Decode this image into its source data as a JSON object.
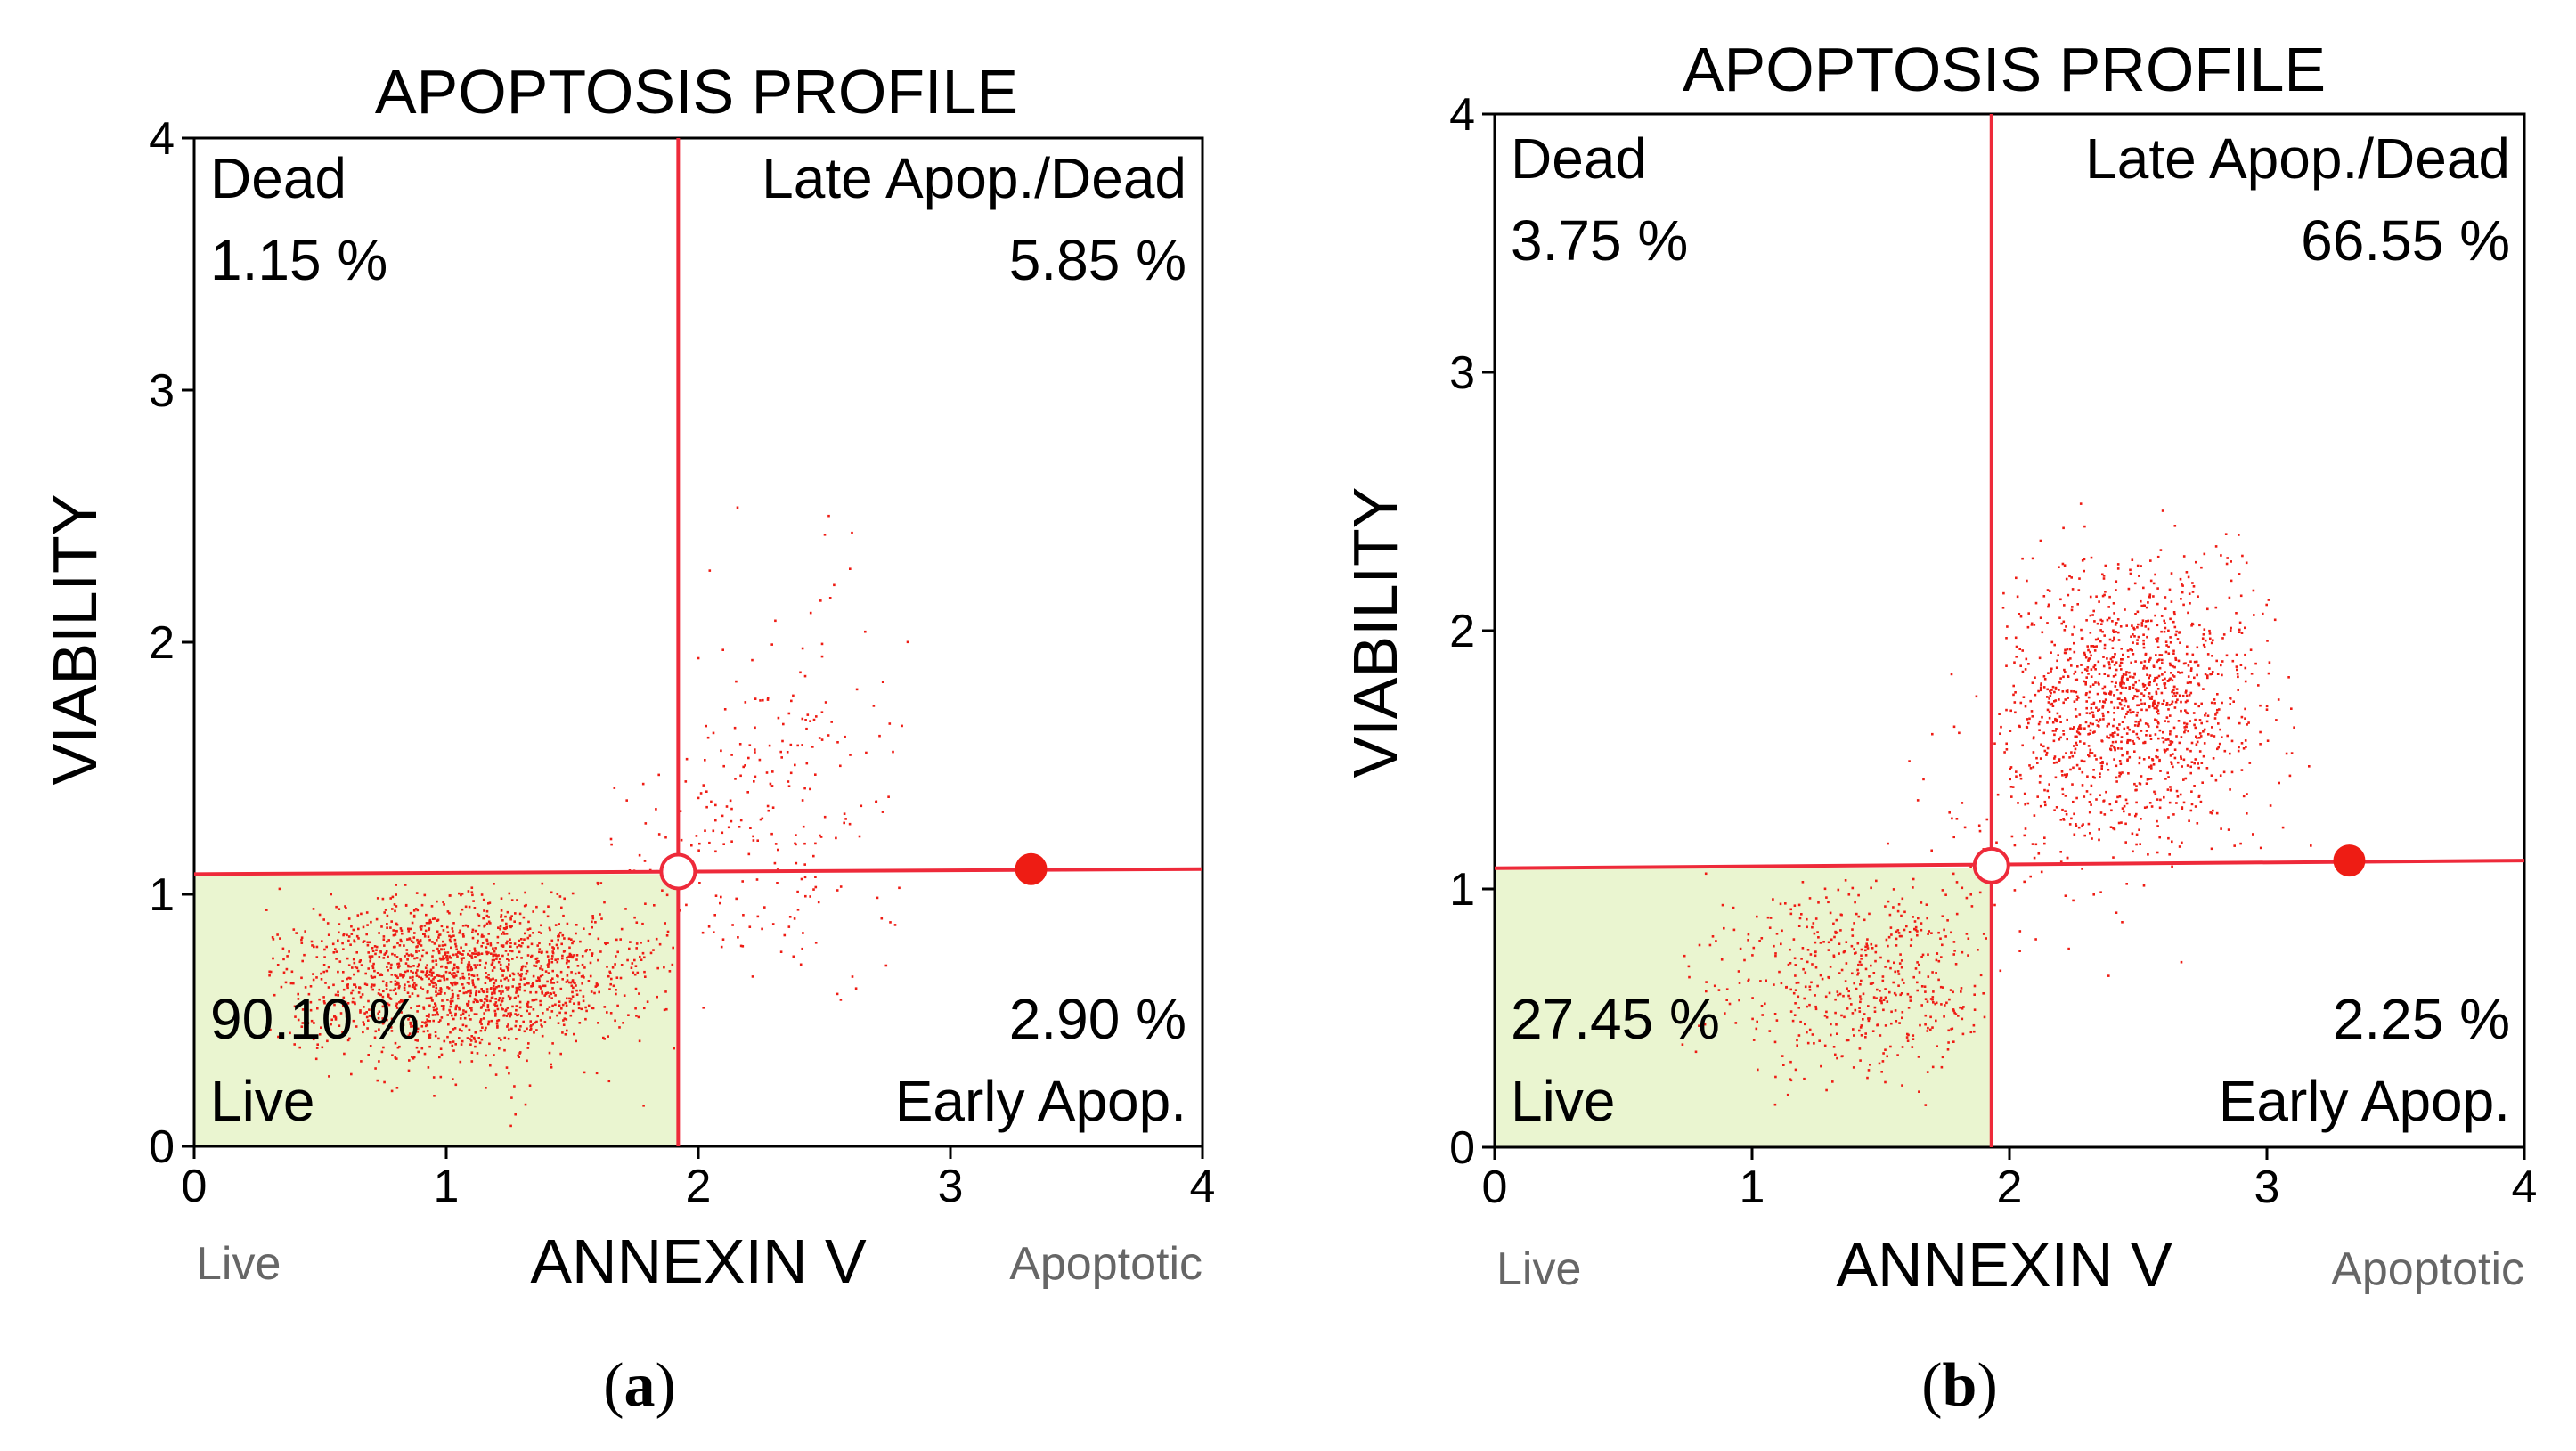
{
  "chart_data": [
    {
      "type": "scatter",
      "panel_label": "a",
      "title": "APOPTOSIS PROFILE",
      "xlabel": "ANNEXIN V",
      "ylabel": "VIABILITY",
      "xlim": [
        0,
        4
      ],
      "ylim": [
        0,
        4
      ],
      "xticks": [
        "0",
        "1",
        "2",
        "3",
        "4"
      ],
      "yticks": [
        "0",
        "1",
        "2",
        "3",
        "4"
      ],
      "x_left_caption": "Live",
      "x_right_caption": "Apoptotic",
      "gate": {
        "x": 1.92,
        "y": 1.09,
        "y_at_left": 1.08,
        "y_at_right": 1.1,
        "handle_x": 3.32,
        "handle_y": 1.1
      },
      "quadrants": {
        "top_left": {
          "name": "Dead",
          "value": "1.15 %"
        },
        "top_right": {
          "name": "Late Apop./Dead",
          "value": "5.85 %"
        },
        "bottom_left": {
          "name": "Live",
          "value": "90.10 %"
        },
        "bottom_right": {
          "name": "Early Apop.",
          "value": "2.90 %"
        }
      },
      "clusters": [
        {
          "cx": 1.05,
          "cy": 0.68,
          "sx": 0.36,
          "sy": 0.17,
          "n": 1700,
          "xmin": 0.28,
          "xmax": 1.9,
          "ymin": 0.08,
          "ymax": 1.05
        },
        {
          "cx": 2.35,
          "cy": 1.35,
          "sx": 0.22,
          "sy": 0.45,
          "n": 210,
          "xmin": 1.95,
          "xmax": 2.9,
          "ymin": 0.55,
          "ymax": 2.6
        },
        {
          "cx": 1.95,
          "cy": 1.15,
          "sx": 0.22,
          "sy": 0.25,
          "n": 70,
          "xmin": 1.5,
          "xmax": 2.5,
          "ymin": 0.4,
          "ymax": 2.1
        }
      ]
    },
    {
      "type": "scatter",
      "panel_label": "b",
      "title": "APOPTOSIS PROFILE",
      "xlabel": "ANNEXIN V",
      "ylabel": "VIABILITY",
      "xlim": [
        0,
        4
      ],
      "ylim": [
        0,
        4
      ],
      "xticks": [
        "0",
        "1",
        "2",
        "3",
        "4"
      ],
      "yticks": [
        "0",
        "1",
        "2",
        "3",
        "4"
      ],
      "x_left_caption": "Live",
      "x_right_caption": "Apoptotic",
      "gate": {
        "x": 1.93,
        "y": 1.09,
        "y_at_left": 1.08,
        "y_at_right": 1.11,
        "handle_x": 3.32,
        "handle_y": 1.11
      },
      "quadrants": {
        "top_left": {
          "name": "Dead",
          "value": "3.75 %"
        },
        "top_right": {
          "name": "Late Apop./Dead",
          "value": "66.55 %"
        },
        "bottom_left": {
          "name": "Live",
          "value": "27.45 %"
        },
        "bottom_right": {
          "name": "Early Apop.",
          "value": "2.25 %"
        }
      },
      "clusters": [
        {
          "cx": 2.45,
          "cy": 1.72,
          "sx": 0.26,
          "sy": 0.27,
          "n": 1350,
          "xmin": 1.95,
          "xmax": 3.2,
          "ymin": 1.1,
          "ymax": 2.75
        },
        {
          "cx": 1.45,
          "cy": 0.66,
          "sx": 0.3,
          "sy": 0.2,
          "n": 560,
          "xmin": 0.55,
          "xmax": 1.9,
          "ymin": 0.05,
          "ymax": 1.07
        },
        {
          "cx": 2.0,
          "cy": 1.2,
          "sx": 0.3,
          "sy": 0.35,
          "n": 90,
          "xmin": 1.3,
          "xmax": 2.9,
          "ymin": 0.45,
          "ymax": 2.4
        }
      ]
    }
  ],
  "colors": {
    "gate_line": "#ee2a3a",
    "dots": "#ee1c14",
    "live_fill": "#eaf5d0",
    "axis": "#000000",
    "caption": "#666666"
  }
}
